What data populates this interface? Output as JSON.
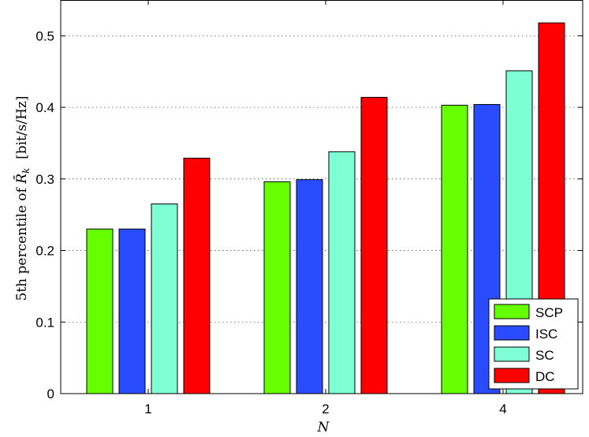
{
  "chart_data": {
    "type": "bar",
    "categories": [
      "1",
      "2",
      "4"
    ],
    "series": [
      {
        "name": "SCP",
        "color": "#66ff00",
        "values": [
          0.23,
          0.296,
          0.403
        ]
      },
      {
        "name": "ISC",
        "color": "#2a4cff",
        "values": [
          0.23,
          0.299,
          0.404
        ]
      },
      {
        "name": "SC",
        "color": "#7fffd4",
        "values": [
          0.265,
          0.338,
          0.451
        ]
      },
      {
        "name": "DC",
        "color": "#ff0000",
        "values": [
          0.329,
          0.414,
          0.518
        ]
      }
    ],
    "xlabel": "N",
    "ylabel": "5th percentile of R̄_k [bit/s/Hz]",
    "ylim": [
      0,
      0.55
    ],
    "yticks": [
      "0",
      "0.1",
      "0.2",
      "0.3",
      "0.4",
      "0.5"
    ],
    "grid": "horizontal dotted",
    "legend_position": "bottom-right"
  }
}
